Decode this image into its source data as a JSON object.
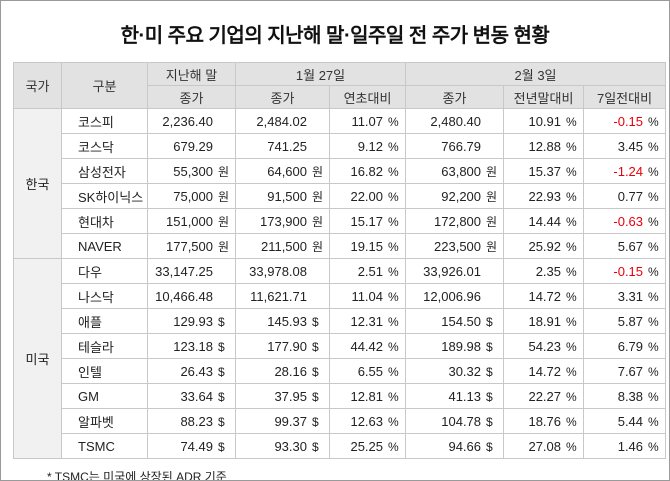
{
  "title": "한·미 주요 기업의 지난해 말·일주일 전 주가 변동 현황",
  "footnote": "* TSMC는 미국에 상장된 ADR 기준",
  "colors": {
    "negative": "#e8000b",
    "header_bg": "#e2e2e2",
    "country_bg": "#f1f1f1",
    "border": "#c8c8c8"
  },
  "table": {
    "header": {
      "country": "국가",
      "category": "구분",
      "group_last_year": "지난해 말",
      "group_jan27": "1월 27일",
      "group_feb3": "2월 3일",
      "sub": [
        "종가",
        "종가",
        "연초대비",
        "종가",
        "전년말대비",
        "7일전대비"
      ]
    },
    "groups": [
      {
        "country": "한국",
        "rows": [
          {
            "name": "코스피",
            "cells": [
              {
                "v": "2,236.40",
                "u": ""
              },
              {
                "v": "2,484.02",
                "u": ""
              },
              {
                "v": "11.07",
                "u": "%"
              },
              {
                "v": "2,480.40",
                "u": ""
              },
              {
                "v": "10.91",
                "u": "%"
              },
              {
                "v": "-0.15",
                "u": "%"
              }
            ]
          },
          {
            "name": "코스닥",
            "cells": [
              {
                "v": "679.29",
                "u": ""
              },
              {
                "v": "741.25",
                "u": ""
              },
              {
                "v": "9.12",
                "u": "%"
              },
              {
                "v": "766.79",
                "u": ""
              },
              {
                "v": "12.88",
                "u": "%"
              },
              {
                "v": "3.45",
                "u": "%"
              }
            ]
          },
          {
            "name": "삼성전자",
            "cells": [
              {
                "v": "55,300",
                "u": "원"
              },
              {
                "v": "64,600",
                "u": "원"
              },
              {
                "v": "16.82",
                "u": "%"
              },
              {
                "v": "63,800",
                "u": "원"
              },
              {
                "v": "15.37",
                "u": "%"
              },
              {
                "v": "-1.24",
                "u": "%"
              }
            ]
          },
          {
            "name": "SK하이닉스",
            "cells": [
              {
                "v": "75,000",
                "u": "원"
              },
              {
                "v": "91,500",
                "u": "원"
              },
              {
                "v": "22.00",
                "u": "%"
              },
              {
                "v": "92,200",
                "u": "원"
              },
              {
                "v": "22.93",
                "u": "%"
              },
              {
                "v": "0.77",
                "u": "%"
              }
            ]
          },
          {
            "name": "현대차",
            "cells": [
              {
                "v": "151,000",
                "u": "원"
              },
              {
                "v": "173,900",
                "u": "원"
              },
              {
                "v": "15.17",
                "u": "%"
              },
              {
                "v": "172,800",
                "u": "원"
              },
              {
                "v": "14.44",
                "u": "%"
              },
              {
                "v": "-0.63",
                "u": "%"
              }
            ]
          },
          {
            "name": "NAVER",
            "cells": [
              {
                "v": "177,500",
                "u": "원"
              },
              {
                "v": "211,500",
                "u": "원"
              },
              {
                "v": "19.15",
                "u": "%"
              },
              {
                "v": "223,500",
                "u": "원"
              },
              {
                "v": "25.92",
                "u": "%"
              },
              {
                "v": "5.67",
                "u": "%"
              }
            ]
          }
        ]
      },
      {
        "country": "미국",
        "rows": [
          {
            "name": "다우",
            "cells": [
              {
                "v": "33,147.25",
                "u": ""
              },
              {
                "v": "33,978.08",
                "u": ""
              },
              {
                "v": "2.51",
                "u": "%"
              },
              {
                "v": "33,926.01",
                "u": ""
              },
              {
                "v": "2.35",
                "u": "%"
              },
              {
                "v": "-0.15",
                "u": "%"
              }
            ]
          },
          {
            "name": "나스닥",
            "cells": [
              {
                "v": "10,466.48",
                "u": ""
              },
              {
                "v": "11,621.71",
                "u": ""
              },
              {
                "v": "11.04",
                "u": "%"
              },
              {
                "v": "12,006.96",
                "u": ""
              },
              {
                "v": "14.72",
                "u": "%"
              },
              {
                "v": "3.31",
                "u": "%"
              }
            ]
          },
          {
            "name": "애플",
            "cells": [
              {
                "v": "129.93",
                "u": "$"
              },
              {
                "v": "145.93",
                "u": "$"
              },
              {
                "v": "12.31",
                "u": "%"
              },
              {
                "v": "154.50",
                "u": "$"
              },
              {
                "v": "18.91",
                "u": "%"
              },
              {
                "v": "5.87",
                "u": "%"
              }
            ]
          },
          {
            "name": "테슬라",
            "cells": [
              {
                "v": "123.18",
                "u": "$"
              },
              {
                "v": "177.90",
                "u": "$"
              },
              {
                "v": "44.42",
                "u": "%"
              },
              {
                "v": "189.98",
                "u": "$"
              },
              {
                "v": "54.23",
                "u": "%"
              },
              {
                "v": "6.79",
                "u": "%"
              }
            ]
          },
          {
            "name": "인텔",
            "cells": [
              {
                "v": "26.43",
                "u": "$"
              },
              {
                "v": "28.16",
                "u": "$"
              },
              {
                "v": "6.55",
                "u": "%"
              },
              {
                "v": "30.32",
                "u": "$"
              },
              {
                "v": "14.72",
                "u": "%"
              },
              {
                "v": "7.67",
                "u": "%"
              }
            ]
          },
          {
            "name": "GM",
            "cells": [
              {
                "v": "33.64",
                "u": "$"
              },
              {
                "v": "37.95",
                "u": "$"
              },
              {
                "v": "12.81",
                "u": "%"
              },
              {
                "v": "41.13",
                "u": "$"
              },
              {
                "v": "22.27",
                "u": "%"
              },
              {
                "v": "8.38",
                "u": "%"
              }
            ]
          },
          {
            "name": "알파벳",
            "cells": [
              {
                "v": "88.23",
                "u": "$"
              },
              {
                "v": "99.37",
                "u": "$"
              },
              {
                "v": "12.63",
                "u": "%"
              },
              {
                "v": "104.78",
                "u": "$"
              },
              {
                "v": "18.76",
                "u": "%"
              },
              {
                "v": "5.44",
                "u": "%"
              }
            ]
          },
          {
            "name": "TSMC",
            "cells": [
              {
                "v": "74.49",
                "u": "$"
              },
              {
                "v": "93.30",
                "u": "$"
              },
              {
                "v": "25.25",
                "u": "%"
              },
              {
                "v": "94.66",
                "u": "$"
              },
              {
                "v": "27.08",
                "u": "%"
              },
              {
                "v": "1.46",
                "u": "%"
              }
            ]
          }
        ]
      }
    ]
  },
  "chart_data": {
    "type": "table",
    "title": "한·미 주요 기업의 지난해 말·일주일 전 주가 변동 현황",
    "columns": [
      "국가",
      "구분",
      "지난해 말 종가",
      "1월 27일 종가",
      "1월 27일 연초대비(%)",
      "2월 3일 종가",
      "2월 3일 전년말대비(%)",
      "2월 3일 7일전대비(%)"
    ],
    "rows": [
      [
        "한국",
        "코스피",
        2236.4,
        2484.02,
        11.07,
        2480.4,
        10.91,
        -0.15
      ],
      [
        "한국",
        "코스닥",
        679.29,
        741.25,
        9.12,
        766.79,
        12.88,
        3.45
      ],
      [
        "한국",
        "삼성전자",
        55300,
        64600,
        16.82,
        63800,
        15.37,
        -1.24
      ],
      [
        "한국",
        "SK하이닉스",
        75000,
        91500,
        22.0,
        92200,
        22.93,
        0.77
      ],
      [
        "한국",
        "현대차",
        151000,
        173900,
        15.17,
        172800,
        14.44,
        -0.63
      ],
      [
        "한국",
        "NAVER",
        177500,
        211500,
        19.15,
        223500,
        25.92,
        5.67
      ],
      [
        "미국",
        "다우",
        33147.25,
        33978.08,
        2.51,
        33926.01,
        2.35,
        -0.15
      ],
      [
        "미국",
        "나스닥",
        10466.48,
        11621.71,
        11.04,
        12006.96,
        14.72,
        3.31
      ],
      [
        "미국",
        "애플",
        129.93,
        145.93,
        12.31,
        154.5,
        18.91,
        5.87
      ],
      [
        "미국",
        "테슬라",
        123.18,
        177.9,
        44.42,
        189.98,
        54.23,
        6.79
      ],
      [
        "미국",
        "인텔",
        26.43,
        28.16,
        6.55,
        30.32,
        14.72,
        7.67
      ],
      [
        "미국",
        "GM",
        33.64,
        37.95,
        12.81,
        41.13,
        22.27,
        8.38
      ],
      [
        "미국",
        "알파벳",
        88.23,
        99.37,
        12.63,
        104.78,
        18.76,
        5.44
      ],
      [
        "미국",
        "TSMC",
        74.49,
        93.3,
        25.25,
        94.66,
        27.08,
        1.46
      ]
    ],
    "units": {
      "korea_stock_close": "원",
      "us_stock_close": "$",
      "percent_columns": "%"
    },
    "footnote": "* TSMC는 미국에 상장된 ADR 기준",
    "negative_values_color": "#e8000b"
  }
}
